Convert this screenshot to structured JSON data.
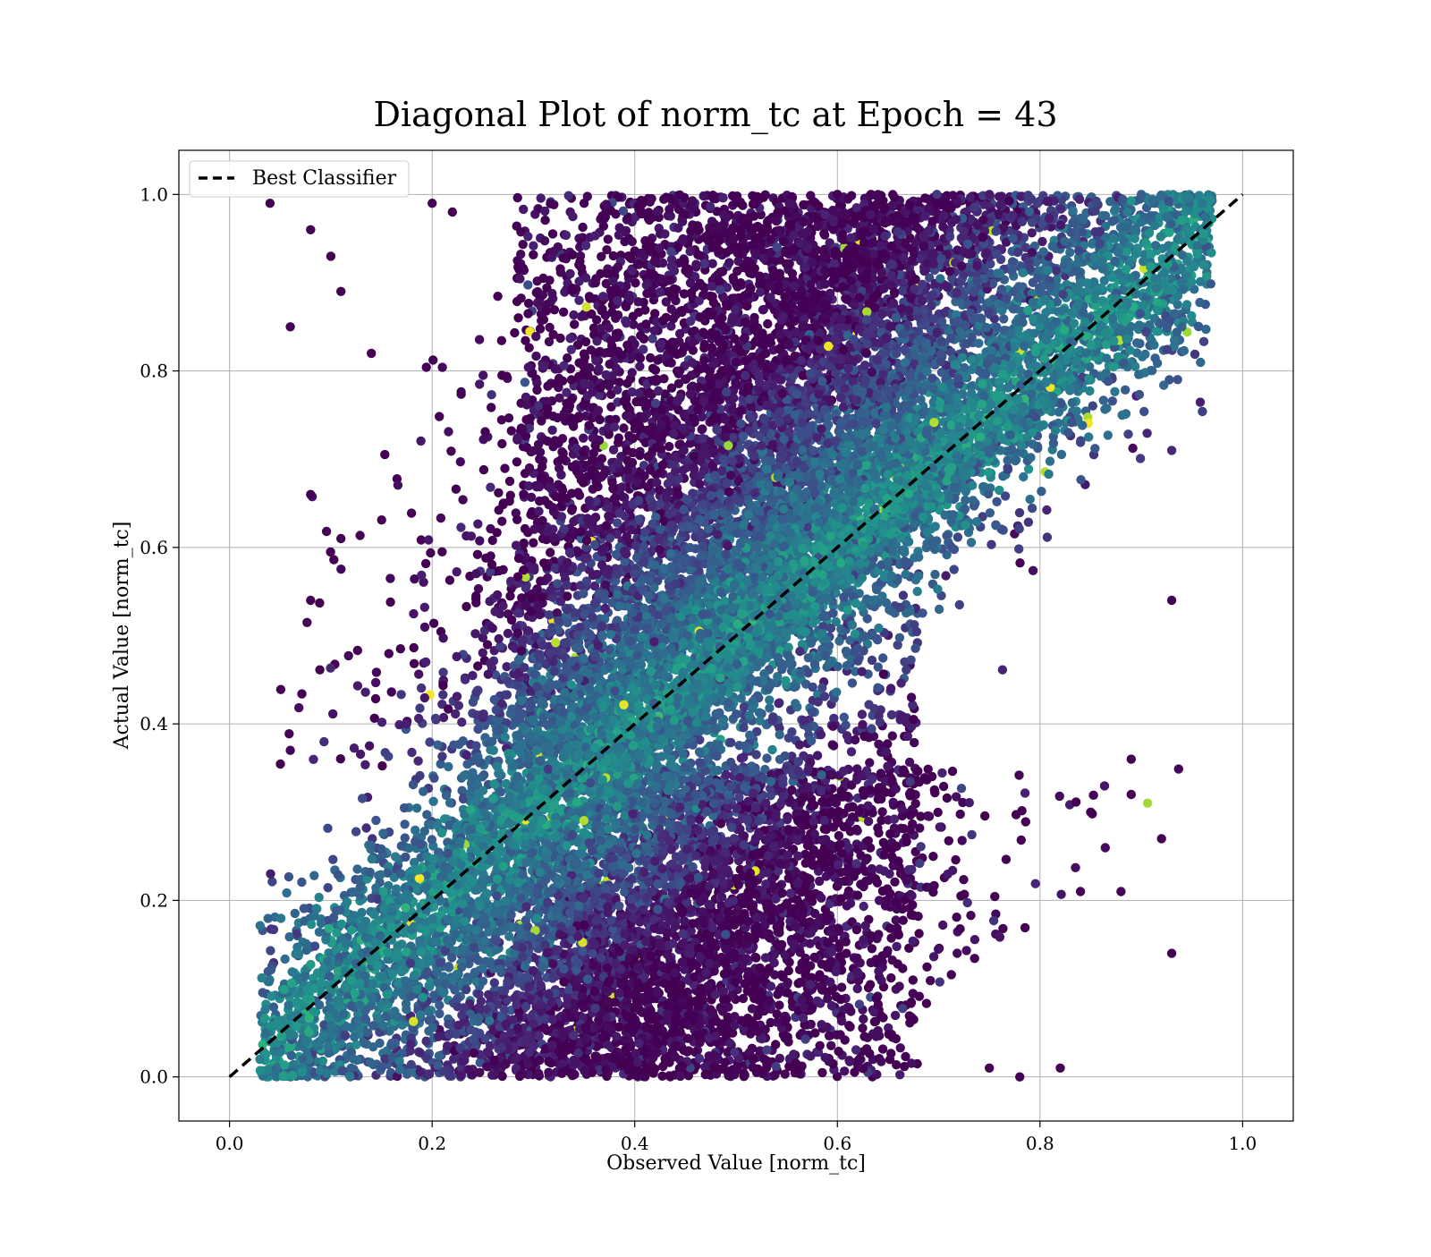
{
  "chart_data": {
    "type": "scatter",
    "title": "Diagonal Plot of norm_tc at Epoch = 43",
    "xlabel": "Observed Value [norm_tc]",
    "ylabel": "Actual Value [norm_tc]",
    "xlim": [
      -0.05,
      1.05
    ],
    "ylim": [
      -0.05,
      1.05
    ],
    "xticks": [
      "0.0",
      "0.2",
      "0.4",
      "0.6",
      "0.8",
      "1.0"
    ],
    "yticks": [
      "0.0",
      "0.2",
      "0.4",
      "0.6",
      "0.8",
      "1.0"
    ],
    "grid": true,
    "legend_position": "top-left",
    "colormap": "viridis",
    "colors": {
      "low": "#440154",
      "mid": "#31688e",
      "high": "#35b779",
      "max": "#fde725",
      "reference_line": "#000000"
    },
    "series": [
      {
        "kind": "line",
        "style": "dashed",
        "name": "Best Classifier",
        "x": [
          0.0,
          1.0
        ],
        "y": [
          0.0,
          1.0
        ]
      },
      {
        "kind": "scatter",
        "point_count_estimate": 60000,
        "observed_range": [
          0.03,
          0.97
        ],
        "actual_range": [
          0.0,
          1.0
        ],
        "sample_points": [
          [
            0.04,
            0.99
          ],
          [
            0.08,
            0.96
          ],
          [
            0.06,
            0.85
          ],
          [
            0.11,
            0.89
          ],
          [
            0.1,
            0.93
          ],
          [
            0.08,
            0.66
          ],
          [
            0.06,
            0.37
          ],
          [
            0.08,
            0.54
          ],
          [
            0.11,
            0.61
          ],
          [
            0.14,
            0.82
          ],
          [
            0.93,
            0.71
          ],
          [
            0.93,
            0.54
          ],
          [
            0.93,
            0.14
          ],
          [
            0.92,
            0.27
          ],
          [
            0.89,
            0.36
          ],
          [
            0.89,
            0.32
          ],
          [
            0.88,
            0.21
          ],
          [
            0.85,
            0.3
          ],
          [
            0.84,
            0.21
          ],
          [
            0.94,
            0.85
          ],
          [
            0.42,
            0.31
          ],
          [
            0.46,
            0.32
          ],
          [
            0.34,
            0.24
          ],
          [
            0.57,
            0.68
          ],
          [
            0.62,
            0.72
          ],
          [
            0.82,
            0.01
          ],
          [
            0.78,
            0.0
          ],
          [
            0.75,
            0.01
          ],
          [
            0.03,
            0.02
          ],
          [
            0.04,
            0.04
          ],
          [
            0.15,
            0.01
          ],
          [
            0.12,
            0.01
          ],
          [
            0.2,
            0.99
          ],
          [
            0.22,
            0.98
          ],
          [
            0.35,
            0.99
          ],
          [
            0.6,
            1.0
          ],
          [
            0.75,
            1.0
          ],
          [
            0.9,
            1.0
          ],
          [
            0.96,
            0.99
          ],
          [
            0.5,
            0.5
          ],
          [
            0.3,
            0.3
          ],
          [
            0.7,
            0.7
          ],
          [
            0.2,
            0.2
          ],
          [
            0.8,
            0.8
          ],
          [
            0.1,
            0.1
          ]
        ]
      }
    ]
  }
}
